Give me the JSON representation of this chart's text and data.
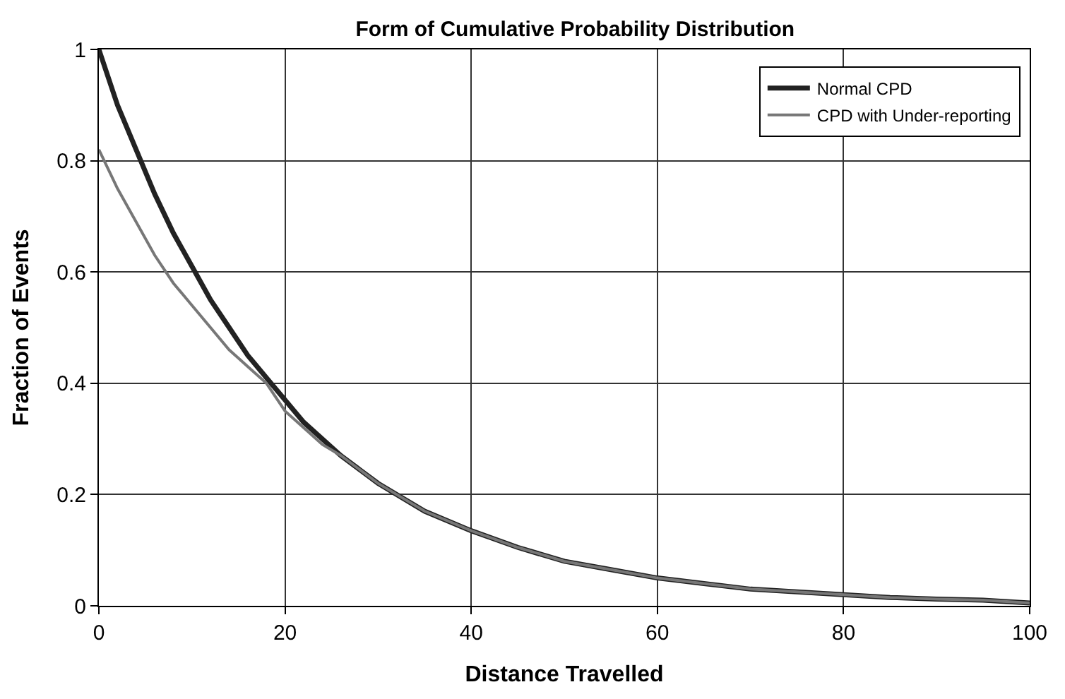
{
  "chart_data": {
    "type": "line",
    "title": "Form of Cumulative Probability Distribution",
    "xlabel": "Distance Travelled",
    "ylabel": "Fraction of Events",
    "x": [
      0,
      2,
      4,
      6,
      8,
      10,
      12,
      14,
      16,
      18,
      20,
      22,
      24,
      26,
      28,
      30,
      35,
      40,
      45,
      50,
      55,
      60,
      65,
      70,
      75,
      80,
      85,
      90,
      95,
      100
    ],
    "series": [
      {
        "name": "Normal CPD",
        "color": "#222222",
        "values": [
          1,
          0.9,
          0.82,
          0.74,
          0.67,
          0.61,
          0.55,
          0.5,
          0.45,
          0.41,
          0.37,
          0.33,
          0.3,
          0.27,
          0.245,
          0.22,
          0.17,
          0.135,
          0.105,
          0.08,
          0.065,
          0.05,
          0.04,
          0.03,
          0.025,
          0.02,
          0.015,
          0.012,
          0.01,
          0.005
        ]
      },
      {
        "name": "CPD with Under-reporting",
        "color": "#777777",
        "values": [
          0.82,
          0.75,
          0.69,
          0.63,
          0.58,
          0.54,
          0.5,
          0.46,
          0.43,
          0.4,
          0.35,
          0.32,
          0.29,
          0.27,
          0.245,
          0.22,
          0.17,
          0.135,
          0.105,
          0.08,
          0.065,
          0.05,
          0.04,
          0.03,
          0.025,
          0.02,
          0.015,
          0.012,
          0.01,
          0.005
        ]
      }
    ],
    "xlim": [
      0,
      100
    ],
    "xticks": [
      0,
      20,
      40,
      60,
      80,
      100
    ],
    "ylim": [
      0,
      1
    ],
    "yticks": [
      0,
      0.2,
      0.4,
      0.6,
      0.8,
      1
    ],
    "grid": true,
    "legend": "top right",
    "marker": "none",
    "line_style": "solid"
  }
}
